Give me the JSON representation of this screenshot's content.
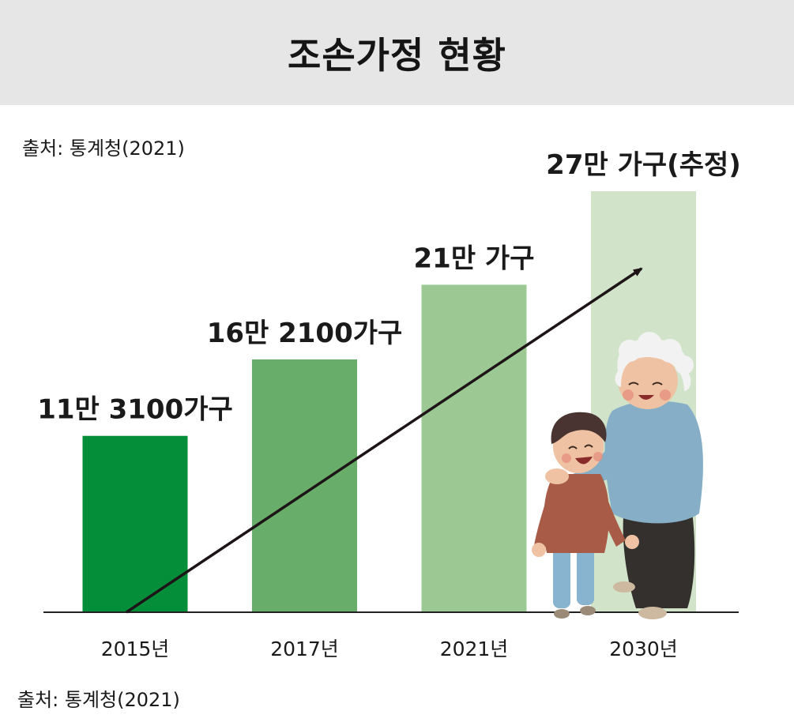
{
  "header": {
    "title": "조손가정 현황"
  },
  "source_top": "출처: 통계청(2021)",
  "source_bottom": "출처: 통계청(2021)",
  "chart_data": {
    "type": "bar",
    "categories": [
      "2015년",
      "2017년",
      "2021년",
      "2030년"
    ],
    "values": [
      113100,
      162100,
      210000,
      270000
    ],
    "data_labels": [
      "11만 3100가구",
      "16만 2100가구",
      "21만 가구",
      "27만 가구(추정)"
    ],
    "unit": "가구",
    "ylim": [
      0,
      270000
    ],
    "bar_colors": [
      "#058e3a",
      "#68ae6a",
      "#9cc894",
      "#d1e3c8"
    ],
    "axis_color": "#222222",
    "trend_arrow": true,
    "grid": false,
    "legend": "none"
  }
}
